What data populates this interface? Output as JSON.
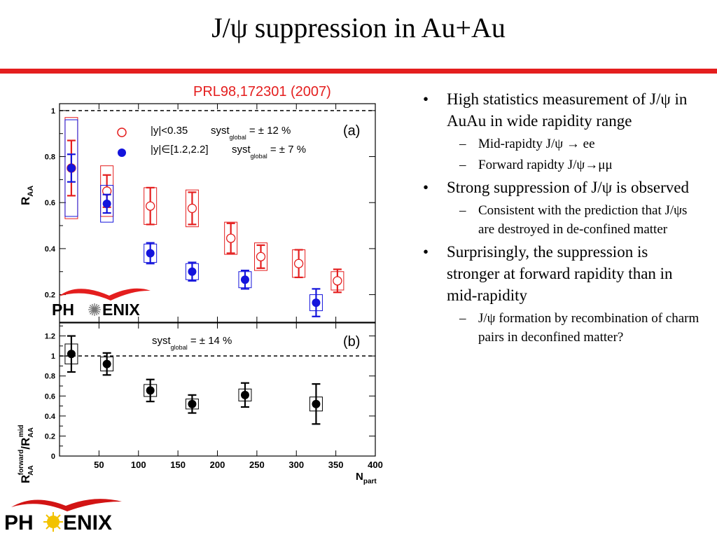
{
  "title": "J/ψ suppression in Au+Au",
  "reference": "PRL98,172301 (2007)",
  "logo_text": "PHENIX",
  "colors": {
    "accent_red": "#e41e1e",
    "blue": "#1414dc",
    "black": "#000000"
  },
  "bullets": [
    {
      "text": "High statistics measurement of J/ψ in AuAu in wide rapidity range",
      "sub": [
        "Mid-rapidty J/ψ → ee",
        "Forward rapidty J/ψ→μμ"
      ]
    },
    {
      "text": "Strong suppression of J/ψ is observed",
      "sub": [
        "Consistent with the prediction that J/ψs are destroyed in de-confined matter"
      ]
    },
    {
      "text": "Surprisingly, the suppression is stronger at forward rapidity than in mid-rapidity",
      "sub": [
        "J/ψ formation by recombination of charm pairs in deconfined matter?"
      ]
    }
  ],
  "chart_data": [
    {
      "type": "scatter",
      "panel_label": "(a)",
      "ylabel": "R_AA",
      "xlim": [
        0,
        400
      ],
      "ylim": [
        0.08,
        1.03
      ],
      "yticks": [
        0.2,
        0.4,
        0.6,
        0.8,
        1
      ],
      "reference_line": 1,
      "legend_placement": "top",
      "legend": [
        {
          "label": "|y|<0.35",
          "syst": "syst_global = ± 12 %",
          "marker": "open circle",
          "color": "#e41e1e"
        },
        {
          "label": "|y|∈[1.2,2.2]",
          "syst": "syst_global = ± 7 %",
          "marker": "filled circle",
          "color": "#1414dc"
        }
      ],
      "series": [
        {
          "name": "|y|<0.35",
          "marker": "open",
          "color": "#e41e1e",
          "x": [
            15,
            60,
            115,
            168,
            217,
            255,
            303,
            352
          ],
          "y": [
            0.75,
            0.65,
            0.585,
            0.575,
            0.445,
            0.365,
            0.335,
            0.26
          ],
          "stat": [
            0.12,
            0.07,
            0.08,
            0.07,
            0.065,
            0.05,
            0.06,
            0.05
          ],
          "syst": [
            0.22,
            0.11,
            0.08,
            0.08,
            0.07,
            0.06,
            0.06,
            0.04
          ]
        },
        {
          "name": "|y|∈[1.2,2.2]",
          "marker": "filled",
          "color": "#1414dc",
          "x": [
            15,
            60,
            115,
            168,
            235,
            325
          ],
          "y": [
            0.75,
            0.595,
            0.38,
            0.3,
            0.265,
            0.165
          ],
          "stat": [
            0.06,
            0.04,
            0.045,
            0.04,
            0.04,
            0.06
          ],
          "syst": [
            0.21,
            0.08,
            0.04,
            0.035,
            0.035,
            0.035
          ]
        }
      ]
    },
    {
      "type": "scatter",
      "panel_label": "(b)",
      "ylabel": "R_AA^forward / R_AA^mid",
      "xlabel": "N_part",
      "xlim": [
        0,
        400
      ],
      "ylim": [
        0,
        1.33
      ],
      "xticks": [
        50,
        100,
        150,
        200,
        250,
        300,
        350,
        400
      ],
      "yticks": [
        0,
        0.2,
        0.4,
        0.6,
        0.8,
        1,
        1.2
      ],
      "reference_line": 1,
      "annotation": "syst_global = ± 14 %",
      "series": [
        {
          "marker": "filled",
          "color": "#000000",
          "x": [
            15,
            60,
            115,
            168,
            235,
            325
          ],
          "y": [
            1.02,
            0.92,
            0.655,
            0.52,
            0.61,
            0.52
          ],
          "stat": [
            0.18,
            0.11,
            0.11,
            0.09,
            0.12,
            0.2
          ],
          "syst": [
            0.1,
            0.07,
            0.06,
            0.05,
            0.06,
            0.07
          ]
        }
      ]
    }
  ]
}
